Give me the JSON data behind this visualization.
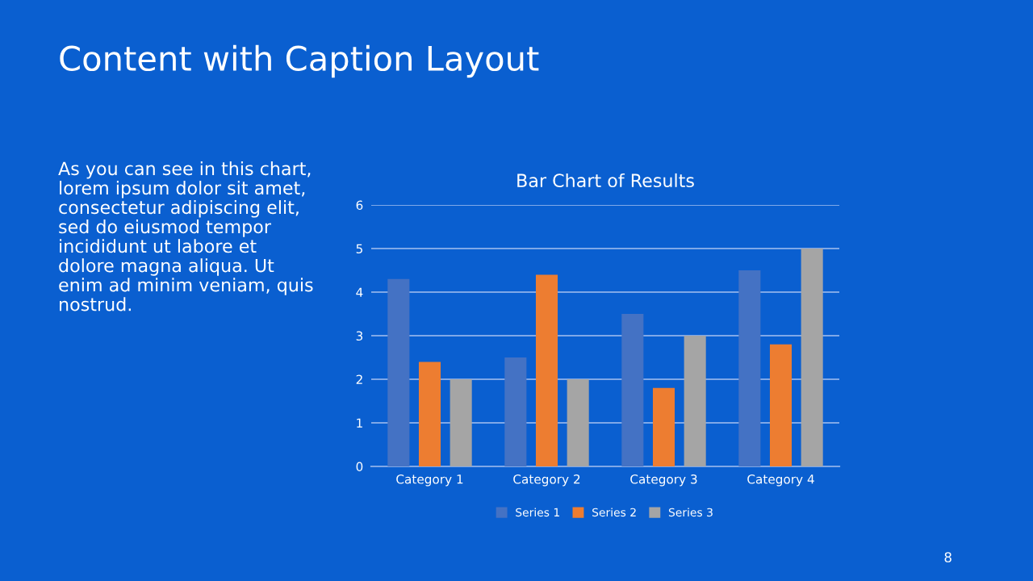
{
  "chart_data": {
    "type": "bar",
    "title": "Bar Chart of Results",
    "categories": [
      "Category 1",
      "Category 2",
      "Category 3",
      "Category 4"
    ],
    "series": [
      {
        "name": "Series 1",
        "color": "#4472c4",
        "values": [
          4.3,
          2.5,
          3.5,
          4.5
        ]
      },
      {
        "name": "Series 2",
        "color": "#ed7d31",
        "values": [
          2.4,
          4.4,
          1.8,
          2.8
        ]
      },
      {
        "name": "Series 3",
        "color": "#a5a5a5",
        "values": [
          2,
          2,
          3,
          5
        ]
      }
    ],
    "ylim": [
      0,
      6
    ],
    "yticks": [
      0,
      1,
      2,
      3,
      4,
      5,
      6
    ],
    "grid": "y",
    "legend": "bottom",
    "annotations": [
      "Content with Caption Layout",
      "As you can see in this chart,\nlorem ipsum dolor sit amet,\nconsectetur adipiscing elit,\nsed do eiusmod tempor\nincididunt ut labore et\ndolore magna aliqua. Ut\nenim ad minim veniam, quis\nnostrud.",
      "8"
    ]
  }
}
